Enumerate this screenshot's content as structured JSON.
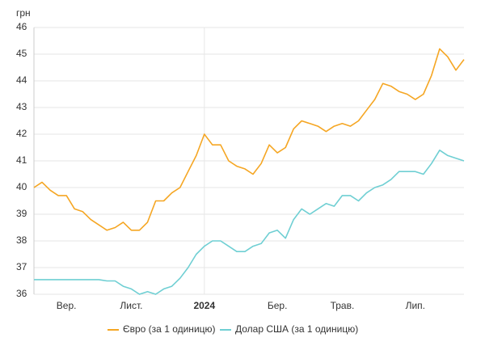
{
  "chart_data": {
    "type": "line",
    "y_unit_label": "грн",
    "categories": [
      null,
      null,
      null,
      null,
      "Вер.",
      null,
      null,
      null,
      null,
      null,
      null,
      null,
      "Лист.",
      null,
      null,
      null,
      null,
      null,
      null,
      null,
      null,
      "2024",
      null,
      null,
      null,
      null,
      null,
      null,
      null,
      null,
      "Бер.",
      null,
      null,
      null,
      null,
      null,
      null,
      null,
      "Трав.",
      null,
      null,
      null,
      null,
      null,
      null,
      null,
      null,
      "Лип.",
      null,
      null,
      null,
      null,
      null,
      null
    ],
    "series": [
      {
        "name": "Євро (за 1 одиницю)",
        "color": "#f5a623",
        "values": [
          40.0,
          40.2,
          39.9,
          39.7,
          39.7,
          39.2,
          39.1,
          38.8,
          38.6,
          38.4,
          38.5,
          38.7,
          38.4,
          38.4,
          38.7,
          39.5,
          39.5,
          39.8,
          40.0,
          40.6,
          41.2,
          42.0,
          41.6,
          41.6,
          41.0,
          40.8,
          40.7,
          40.5,
          40.9,
          41.6,
          41.3,
          41.5,
          42.2,
          42.5,
          42.4,
          42.3,
          42.1,
          42.3,
          42.4,
          42.3,
          42.5,
          42.9,
          43.3,
          43.9,
          43.8,
          43.6,
          43.5,
          43.3,
          43.5,
          44.2,
          45.2,
          44.9,
          44.4,
          44.8
        ]
      },
      {
        "name": "Долар США (за 1 одиницю)",
        "color": "#6fcfd3",
        "values": [
          36.55,
          36.55,
          36.55,
          36.55,
          36.55,
          36.55,
          36.55,
          36.55,
          36.55,
          36.5,
          36.5,
          36.3,
          36.2,
          36.0,
          36.1,
          36.0,
          36.2,
          36.3,
          36.6,
          37.0,
          37.5,
          37.8,
          38.0,
          38.0,
          37.8,
          37.6,
          37.6,
          37.8,
          37.9,
          38.3,
          38.4,
          38.1,
          38.8,
          39.2,
          39.0,
          39.2,
          39.4,
          39.3,
          39.7,
          39.7,
          39.5,
          39.8,
          40.0,
          40.1,
          40.3,
          40.6,
          40.6,
          40.6,
          40.5,
          40.9,
          41.4,
          41.2,
          41.1,
          41.0
        ]
      }
    ],
    "ylim": [
      36,
      46
    ],
    "yticks": [
      36,
      37,
      38,
      39,
      40,
      41,
      42,
      43,
      44,
      45,
      46
    ],
    "grid": true,
    "legend": "bottom"
  }
}
